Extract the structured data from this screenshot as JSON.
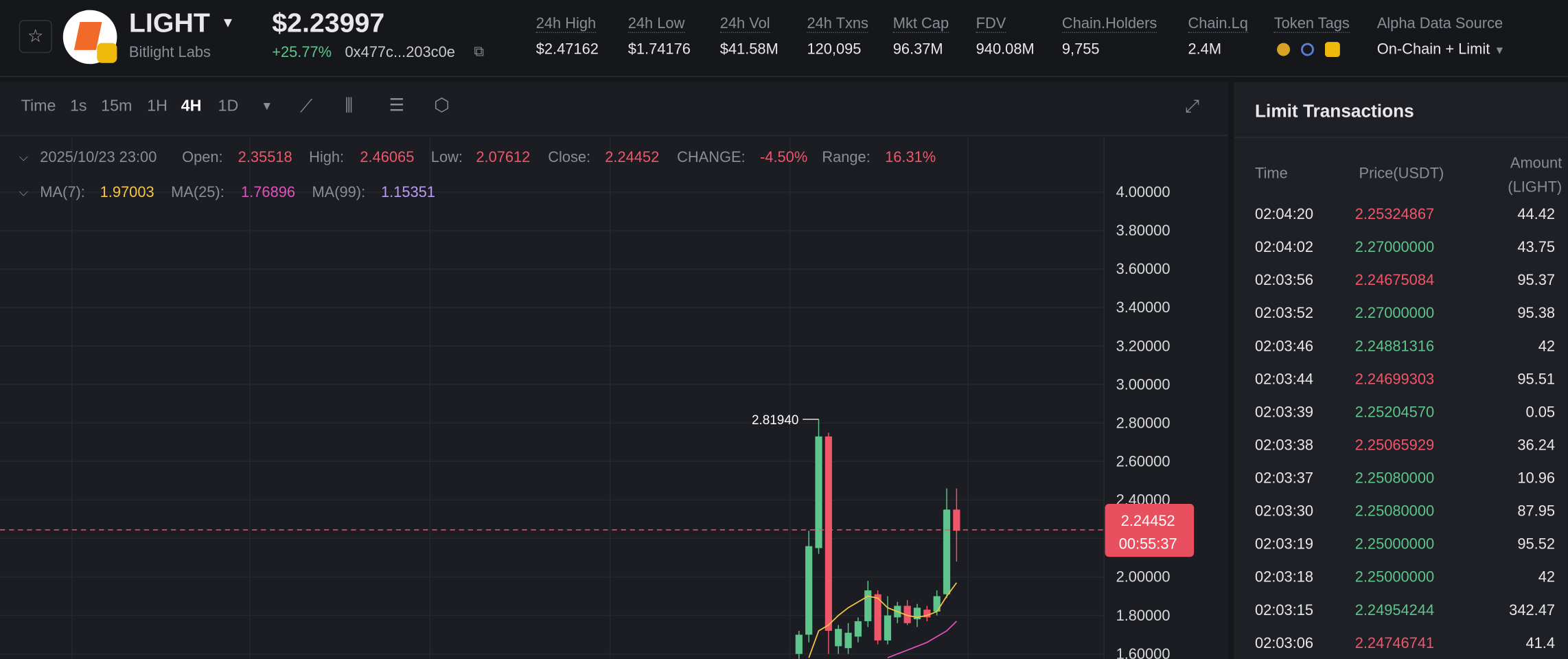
{
  "header": {
    "symbol": "LIGHT",
    "issuer": "Bitlight Labs",
    "price": "$2.23997",
    "change": "+25.77%",
    "address": "0x477c...203c0e",
    "stats": [
      {
        "label": "24h High",
        "value": "$2.47162"
      },
      {
        "label": "24h Low",
        "value": "$1.74176"
      },
      {
        "label": "24h Vol",
        "value": "$41.58M"
      },
      {
        "label": "24h Txns",
        "value": "120,095"
      },
      {
        "label": "Mkt Cap",
        "value": "96.37M"
      },
      {
        "label": "FDV",
        "value": "940.08M"
      },
      {
        "label": "Chain.Holders",
        "value": "9,755"
      },
      {
        "label": "Chain.Lq",
        "value": "2.4M"
      }
    ],
    "token_tags_label": "Token Tags",
    "source_label": "Alpha Data Source",
    "source_value": "On-Chain + Limit"
  },
  "toolbar": {
    "intervals": [
      "Time",
      "1s",
      "15m",
      "1H",
      "4H",
      "1D"
    ],
    "active": 4
  },
  "ohlc": {
    "date": "2025/10/23 23:00",
    "items": [
      {
        "label": "Open:",
        "value": "2.35518"
      },
      {
        "label": "High:",
        "value": "2.46065"
      },
      {
        "label": "Low:",
        "value": "2.07612"
      },
      {
        "label": "Close:",
        "value": "2.24452"
      },
      {
        "label": "CHANGE:",
        "value": "-4.50%"
      },
      {
        "label": "Range:",
        "value": "16.31%"
      }
    ]
  },
  "ma": [
    {
      "label": "MA(7):",
      "value": "1.97003",
      "color": "#f5c543"
    },
    {
      "label": "MA(25):",
      "value": "1.76896",
      "color": "#e052c0"
    },
    {
      "label": "MA(99):",
      "value": "1.15351",
      "color": "#b89cf5"
    }
  ],
  "chart": {
    "ylim": [
      1.574,
      4.286
    ],
    "yticks": [
      {
        "value": 4,
        "label": "4.00000"
      },
      {
        "value": 3.8,
        "label": "3.80000"
      },
      {
        "value": 3.6,
        "label": "3.60000"
      },
      {
        "value": 3.4,
        "label": "3.40000"
      },
      {
        "value": 3.2,
        "label": "3.20000"
      },
      {
        "value": 3,
        "label": "3.00000"
      },
      {
        "value": 2.8,
        "label": "2.80000"
      },
      {
        "value": 2.6,
        "label": "2.60000"
      },
      {
        "value": 2.4,
        "label": "2.40000"
      },
      {
        "value": 2.2,
        "label": "2.20000"
      },
      {
        "value": 2,
        "label": "2.00000"
      },
      {
        "value": 1.8,
        "label": "1.80000"
      },
      {
        "value": 1.6,
        "label": "1.60000"
      }
    ],
    "up_color": "#5fc48b",
    "down_color": "#f0566a",
    "candles": [
      {
        "open": 1.6,
        "high": 1.72,
        "low": 1.57,
        "close": 1.7
      },
      {
        "open": 1.7,
        "high": 2.24,
        "low": 1.66,
        "close": 2.16
      },
      {
        "open": 2.15,
        "high": 2.8194,
        "low": 2.12,
        "close": 2.73
      },
      {
        "open": 2.73,
        "high": 2.75,
        "low": 1.6,
        "close": 1.72
      },
      {
        "open": 1.64,
        "high": 1.75,
        "low": 1.6,
        "close": 1.73
      },
      {
        "open": 1.63,
        "high": 1.76,
        "low": 1.6,
        "close": 1.71
      },
      {
        "open": 1.69,
        "high": 1.79,
        "low": 1.66,
        "close": 1.77
      },
      {
        "open": 1.77,
        "high": 1.98,
        "low": 1.74,
        "close": 1.93
      },
      {
        "open": 1.91,
        "high": 1.93,
        "low": 1.65,
        "close": 1.67
      },
      {
        "open": 1.67,
        "high": 1.9,
        "low": 1.65,
        "close": 1.8
      },
      {
        "open": 1.79,
        "high": 1.87,
        "low": 1.76,
        "close": 1.85
      },
      {
        "open": 1.85,
        "high": 1.88,
        "low": 1.75,
        "close": 1.76
      },
      {
        "open": 1.78,
        "high": 1.86,
        "low": 1.74,
        "close": 1.84
      },
      {
        "open": 1.83,
        "high": 1.85,
        "low": 1.77,
        "close": 1.79
      },
      {
        "open": 1.82,
        "high": 1.93,
        "low": 1.8,
        "close": 1.9
      },
      {
        "open": 1.91,
        "high": 2.46,
        "low": 1.89,
        "close": 2.35
      },
      {
        "open": 2.35,
        "high": 2.46,
        "low": 2.08,
        "close": 2.24
      }
    ],
    "ma7": [
      null,
      1.58,
      1.72,
      1.75,
      1.8,
      1.84,
      1.87,
      1.9,
      1.89,
      1.84,
      1.82,
      1.8,
      1.79,
      1.8,
      1.82,
      1.9,
      1.97
    ],
    "ma25": [
      null,
      null,
      null,
      null,
      null,
      null,
      null,
      null,
      null,
      1.58,
      1.6,
      1.62,
      1.64,
      1.66,
      1.69,
      1.72,
      1.77
    ],
    "high_marker": "2.81940",
    "last_price": 2.24452,
    "countdown": "00:55:37"
  },
  "transactions": {
    "title": "Limit Transactions",
    "columns": [
      "Time",
      "Price(USDT)",
      "Amount (LIGHT)"
    ],
    "rows": [
      [
        "02:04:20",
        "2.25324867",
        "44.42",
        "sell"
      ],
      [
        "02:04:02",
        "2.27000000",
        "43.75",
        "buy"
      ],
      [
        "02:03:56",
        "2.24675084",
        "95.37",
        "sell"
      ],
      [
        "02:03:52",
        "2.27000000",
        "95.38",
        "buy"
      ],
      [
        "02:03:46",
        "2.24881316",
        "42",
        "buy"
      ],
      [
        "02:03:44",
        "2.24699303",
        "95.51",
        "sell"
      ],
      [
        "02:03:39",
        "2.25204570",
        "0.05",
        "buy"
      ],
      [
        "02:03:38",
        "2.25065929",
        "36.24",
        "sell"
      ],
      [
        "02:03:37",
        "2.25080000",
        "10.96",
        "buy"
      ],
      [
        "02:03:30",
        "2.25080000",
        "87.95",
        "buy"
      ],
      [
        "02:03:19",
        "2.25000000",
        "95.52",
        "buy"
      ],
      [
        "02:03:18",
        "2.25000000",
        "42",
        "buy"
      ],
      [
        "02:03:15",
        "2.24954244",
        "342.47",
        "buy"
      ],
      [
        "02:03:06",
        "2.24746741",
        "41.4",
        "sell"
      ]
    ]
  }
}
